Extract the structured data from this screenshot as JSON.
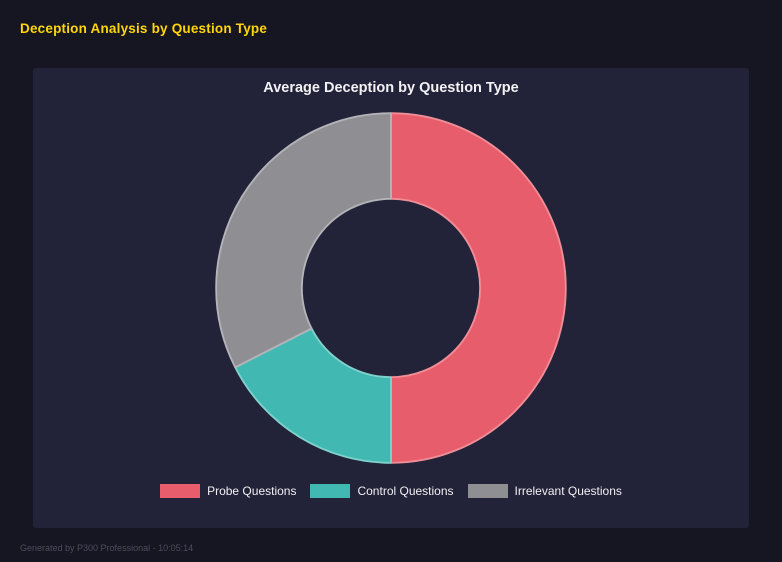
{
  "page": {
    "title": "Deception Analysis by Question Type",
    "footer": "Generated by P300 Professional - 10:05:14"
  },
  "chart_data": {
    "type": "pie",
    "variant": "donut",
    "title": "Average Deception by Question Type",
    "labels": [
      "Probe Questions",
      "Control Questions",
      "Irrelevant Questions"
    ],
    "values": [
      50,
      17.5,
      32.5
    ],
    "colors": [
      "#e85d6c",
      "#41b8b2",
      "#8e8e93"
    ],
    "border_colors": [
      "#f08d97",
      "#7fd2cc",
      "#b3b3b8"
    ],
    "cutout_ratio": 0.51,
    "start_angle_deg": 0,
    "legend_position": "bottom",
    "background": "#222238"
  }
}
